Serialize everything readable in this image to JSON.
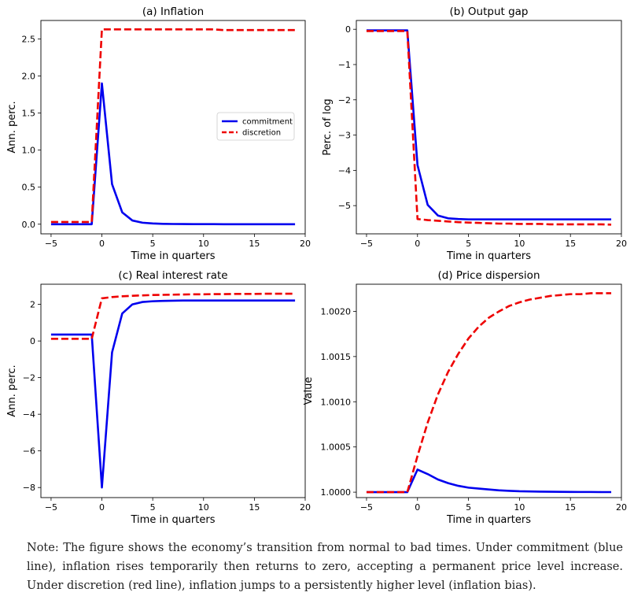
{
  "chart_data": [
    {
      "type": "line",
      "title": "(a) Inflation",
      "xlabel": "Time in quarters",
      "ylabel": "Ann. perc.",
      "xlim": [
        -6,
        20
      ],
      "ylim": [
        -0.13,
        2.75
      ],
      "xticks": [
        -5,
        0,
        5,
        10,
        15,
        20
      ],
      "yticks": [
        0.0,
        0.5,
        1.0,
        1.5,
        2.0,
        2.5
      ],
      "ytick_decimals": 1,
      "legend": "center-right",
      "x": [
        -5,
        -4,
        -3,
        -2,
        -1,
        0,
        1,
        2,
        3,
        4,
        5,
        6,
        7,
        8,
        9,
        10,
        11,
        12,
        13,
        14,
        15,
        16,
        17,
        18,
        19
      ],
      "series": [
        {
          "name": "commitment",
          "color": "#0000ee",
          "style": "solid",
          "values": [
            0,
            0,
            0,
            0,
            0,
            1.9,
            0.54,
            0.16,
            0.05,
            0.02,
            0.01,
            0.005,
            0.003,
            0.002,
            0.001,
            0.001,
            0.001,
            0,
            0,
            0,
            0,
            0,
            0,
            0,
            0
          ]
        },
        {
          "name": "discretion",
          "color": "#ee0000",
          "style": "dashed",
          "values": [
            0.03,
            0.03,
            0.03,
            0.03,
            0.03,
            2.63,
            2.63,
            2.63,
            2.63,
            2.63,
            2.63,
            2.63,
            2.63,
            2.63,
            2.63,
            2.63,
            2.63,
            2.62,
            2.62,
            2.62,
            2.62,
            2.62,
            2.62,
            2.62,
            2.62
          ]
        }
      ]
    },
    {
      "type": "line",
      "title": "(b) Output gap",
      "xlabel": "Time in quarters",
      "ylabel": "Perc. of log",
      "xlim": [
        -6,
        20
      ],
      "ylim": [
        -5.8,
        0.25
      ],
      "xticks": [
        -5,
        0,
        5,
        10,
        15,
        20
      ],
      "yticks": [
        0,
        -1,
        -2,
        -3,
        -4,
        -5
      ],
      "ytick_decimals": 0,
      "x": [
        -5,
        -4,
        -3,
        -2,
        -1,
        0,
        1,
        2,
        3,
        4,
        5,
        6,
        7,
        8,
        9,
        10,
        11,
        12,
        13,
        14,
        15,
        16,
        17,
        18,
        19
      ],
      "series": [
        {
          "name": "commitment",
          "color": "#0000ee",
          "style": "solid",
          "values": [
            -0.03,
            -0.03,
            -0.03,
            -0.03,
            -0.03,
            -3.85,
            -4.98,
            -5.28,
            -5.36,
            -5.38,
            -5.39,
            -5.39,
            -5.39,
            -5.39,
            -5.39,
            -5.39,
            -5.39,
            -5.39,
            -5.39,
            -5.39,
            -5.39,
            -5.39,
            -5.39,
            -5.39,
            -5.39
          ]
        },
        {
          "name": "discretion",
          "color": "#ee0000",
          "style": "dashed",
          "values": [
            -0.05,
            -0.05,
            -0.05,
            -0.05,
            -0.05,
            -5.38,
            -5.41,
            -5.43,
            -5.45,
            -5.47,
            -5.48,
            -5.49,
            -5.5,
            -5.51,
            -5.51,
            -5.52,
            -5.52,
            -5.52,
            -5.53,
            -5.53,
            -5.53,
            -5.53,
            -5.53,
            -5.53,
            -5.54
          ]
        }
      ]
    },
    {
      "type": "line",
      "title": "(c) Real interest rate",
      "xlabel": "Time in quarters",
      "ylabel": "Ann. perc.",
      "xlim": [
        -6,
        20
      ],
      "ylim": [
        -8.55,
        3.1
      ],
      "xticks": [
        -5,
        0,
        5,
        10,
        15,
        20
      ],
      "yticks": [
        2,
        0,
        -2,
        -4,
        -6,
        -8
      ],
      "ytick_decimals": 0,
      "x": [
        -5,
        -4,
        -3,
        -2,
        -1,
        0,
        1,
        2,
        3,
        4,
        5,
        6,
        7,
        8,
        9,
        10,
        11,
        12,
        13,
        14,
        15,
        16,
        17,
        18,
        19
      ],
      "series": [
        {
          "name": "commitment",
          "color": "#0000ee",
          "style": "solid",
          "values": [
            0.35,
            0.35,
            0.35,
            0.35,
            0.35,
            -8.0,
            -0.62,
            1.5,
            2.0,
            2.13,
            2.17,
            2.19,
            2.2,
            2.21,
            2.21,
            2.21,
            2.21,
            2.21,
            2.21,
            2.21,
            2.21,
            2.21,
            2.21,
            2.21,
            2.21
          ]
        },
        {
          "name": "discretion",
          "color": "#ee0000",
          "style": "dashed",
          "values": [
            0.12,
            0.12,
            0.12,
            0.12,
            0.12,
            2.33,
            2.4,
            2.44,
            2.47,
            2.49,
            2.51,
            2.52,
            2.53,
            2.54,
            2.55,
            2.55,
            2.56,
            2.56,
            2.57,
            2.57,
            2.57,
            2.58,
            2.58,
            2.58,
            2.58
          ]
        }
      ]
    },
    {
      "type": "line",
      "title": "(d) Price dispersion",
      "xlabel": "Time in quarters",
      "ylabel": "Value",
      "xlim": [
        -6,
        20
      ],
      "ylim": [
        0.99994,
        1.0023
      ],
      "xticks": [
        -5,
        0,
        5,
        10,
        15,
        20
      ],
      "yticks": [
        1.0,
        1.0005,
        1.001,
        1.0015,
        1.002
      ],
      "ytick_decimals": 4,
      "x": [
        -5,
        -4,
        -3,
        -2,
        -1,
        0,
        1,
        2,
        3,
        4,
        5,
        6,
        7,
        8,
        9,
        10,
        11,
        12,
        13,
        14,
        15,
        16,
        17,
        18,
        19
      ],
      "series": [
        {
          "name": "commitment",
          "color": "#0000ee",
          "style": "solid",
          "values": [
            1.0,
            1.0,
            1.0,
            1.0,
            1.0,
            1.00025,
            1.0002,
            1.00014,
            1.0001,
            1.00007,
            1.00005,
            1.00004,
            1.00003,
            1.00002,
            1.000015,
            1.00001,
            1.000008,
            1.000006,
            1.000005,
            1.000004,
            1.000003,
            1.000002,
            1.000002,
            1.000001,
            1.000001
          ]
        },
        {
          "name": "discretion",
          "color": "#ee0000",
          "style": "dashed",
          "values": [
            1.0,
            1.0,
            1.0,
            1.0,
            1.0,
            1.0004,
            1.00077,
            1.00108,
            1.00133,
            1.00153,
            1.0017,
            1.00183,
            1.00193,
            1.002,
            1.00206,
            1.0021,
            1.00213,
            1.00215,
            1.00217,
            1.00218,
            1.00219,
            1.00219,
            1.0022,
            1.0022,
            1.0022
          ]
        }
      ]
    }
  ],
  "note": "Note: The figure shows the economy’s transition from normal to bad times. Under commitment (blue line), inflation rises temporarily then returns to zero, accepting a permanent price level increase. Under discretion (red line), inflation jumps to a persistently higher level (inflation bias)."
}
